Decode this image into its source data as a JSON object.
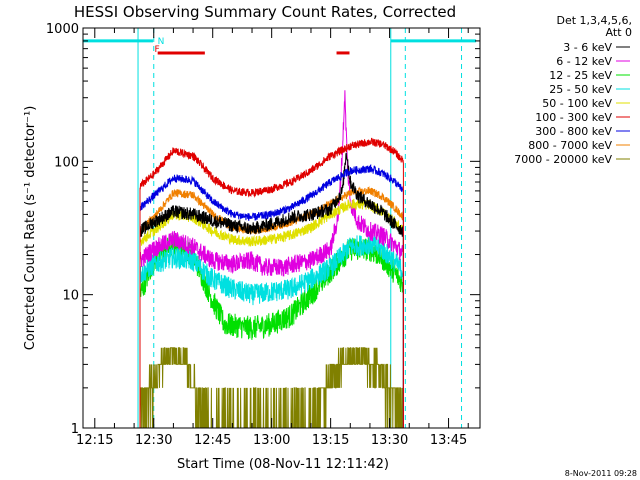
{
  "chart_data": {
    "type": "line",
    "title": "HESSI Observing Summary Count Rates, Corrected",
    "xlabel": "Start Time (08-Nov-11 12:11:42)",
    "ylabel": "Corrected Count Rate (s⁻¹ detector⁻¹)",
    "yscale": "log",
    "ylim": [
      1,
      1000
    ],
    "xlim_minutes": [
      12.0,
      113.0
    ],
    "x_unit": "minutes after 12:00 UT",
    "x_ticks": [
      {
        "label": "12:15",
        "value": 15
      },
      {
        "label": "12:30",
        "value": 30
      },
      {
        "label": "12:45",
        "value": 45
      },
      {
        "label": "13:00",
        "value": 60
      },
      {
        "label": "13:15",
        "value": 75
      },
      {
        "label": "13:30",
        "value": 90
      },
      {
        "label": "13:45",
        "value": 105
      }
    ],
    "y_ticks": [
      {
        "label": "1",
        "value": 1
      },
      {
        "label": "10",
        "value": 10
      },
      {
        "label": "100",
        "value": 100
      },
      {
        "label": "1000",
        "value": 1000
      }
    ],
    "legend_header": [
      "Det 1,3,4,5,6,",
      "Att 0"
    ],
    "legend_position": "right",
    "data_start": 26.5,
    "data_end": 93.5,
    "series": [
      {
        "name": "3 - 6 keV",
        "color": "#000000",
        "noise": 0.05,
        "points": [
          [
            26.5,
            30
          ],
          [
            30,
            35
          ],
          [
            35,
            42
          ],
          [
            40,
            40
          ],
          [
            45,
            36
          ],
          [
            50,
            33
          ],
          [
            55,
            31
          ],
          [
            60,
            34
          ],
          [
            65,
            38
          ],
          [
            70,
            40
          ],
          [
            75,
            44
          ],
          [
            78,
            60
          ],
          [
            79,
            120
          ],
          [
            80,
            70
          ],
          [
            82,
            55
          ],
          [
            85,
            48
          ],
          [
            88,
            42
          ],
          [
            91,
            34
          ],
          [
            93.5,
            30
          ]
        ]
      },
      {
        "name": "6 - 12 keV",
        "color": "#e000e0",
        "noise": 0.07,
        "points": [
          [
            26.5,
            18
          ],
          [
            30,
            22
          ],
          [
            35,
            26
          ],
          [
            40,
            23
          ],
          [
            45,
            18
          ],
          [
            50,
            17
          ],
          [
            55,
            18
          ],
          [
            58,
            16
          ],
          [
            60,
            16
          ],
          [
            63,
            16
          ],
          [
            66,
            17
          ],
          [
            70,
            18
          ],
          [
            75,
            22
          ],
          [
            77,
            40
          ],
          [
            78,
            120
          ],
          [
            78.6,
            320
          ],
          [
            79.3,
            90
          ],
          [
            80,
            50
          ],
          [
            82,
            35
          ],
          [
            85,
            30
          ],
          [
            88,
            28
          ],
          [
            91,
            24
          ],
          [
            93.5,
            20
          ]
        ]
      },
      {
        "name": "12 - 25 keV",
        "color": "#00e000",
        "noise": 0.09,
        "points": [
          [
            26.5,
            10
          ],
          [
            30,
            18
          ],
          [
            35,
            24
          ],
          [
            40,
            20
          ],
          [
            45,
            9
          ],
          [
            48,
            6
          ],
          [
            55,
            5.6
          ],
          [
            60,
            6
          ],
          [
            65,
            7
          ],
          [
            70,
            10
          ],
          [
            75,
            15
          ],
          [
            80,
            22
          ],
          [
            85,
            22
          ],
          [
            88,
            19
          ],
          [
            91,
            15
          ],
          [
            93.5,
            12
          ]
        ]
      },
      {
        "name": "25 - 50 keV",
        "color": "#00e0e0",
        "noise": 0.08,
        "points": [
          [
            26.5,
            14
          ],
          [
            30,
            17
          ],
          [
            35,
            19
          ],
          [
            40,
            18
          ],
          [
            45,
            13
          ],
          [
            50,
            11
          ],
          [
            55,
            10
          ],
          [
            60,
            10.5
          ],
          [
            65,
            11
          ],
          [
            70,
            13
          ],
          [
            75,
            16
          ],
          [
            80,
            23
          ],
          [
            85,
            24
          ],
          [
            88,
            22
          ],
          [
            91,
            18
          ],
          [
            93.5,
            15
          ]
        ]
      },
      {
        "name": "50 - 100 keV",
        "color": "#e0e000",
        "noise": 0.04,
        "points": [
          [
            26.5,
            25
          ],
          [
            30,
            30
          ],
          [
            35,
            40
          ],
          [
            40,
            38
          ],
          [
            45,
            30
          ],
          [
            50,
            26
          ],
          [
            55,
            25
          ],
          [
            60,
            26
          ],
          [
            65,
            28
          ],
          [
            70,
            32
          ],
          [
            75,
            40
          ],
          [
            80,
            48
          ],
          [
            85,
            47
          ],
          [
            88,
            42
          ],
          [
            91,
            36
          ],
          [
            93.5,
            30
          ]
        ]
      },
      {
        "name": "100 - 300 keV",
        "color": "#e00000",
        "noise": 0.03,
        "points": [
          [
            26.5,
            65
          ],
          [
            30,
            80
          ],
          [
            35,
            120
          ],
          [
            40,
            110
          ],
          [
            45,
            75
          ],
          [
            50,
            60
          ],
          [
            55,
            58
          ],
          [
            60,
            62
          ],
          [
            65,
            70
          ],
          [
            70,
            85
          ],
          [
            75,
            110
          ],
          [
            80,
            130
          ],
          [
            85,
            140
          ],
          [
            88,
            135
          ],
          [
            91,
            120
          ],
          [
            93.5,
            100
          ]
        ]
      },
      {
        "name": "300 - 800 keV",
        "color": "#0000e0",
        "noise": 0.03,
        "points": [
          [
            26.5,
            45
          ],
          [
            30,
            55
          ],
          [
            35,
            75
          ],
          [
            40,
            72
          ],
          [
            45,
            50
          ],
          [
            50,
            40
          ],
          [
            55,
            38
          ],
          [
            60,
            40
          ],
          [
            65,
            45
          ],
          [
            70,
            55
          ],
          [
            75,
            70
          ],
          [
            80,
            85
          ],
          [
            85,
            88
          ],
          [
            88,
            82
          ],
          [
            91,
            72
          ],
          [
            93.5,
            60
          ]
        ]
      },
      {
        "name": "800 - 7000 keV",
        "color": "#f08000",
        "noise": 0.03,
        "points": [
          [
            26.5,
            30
          ],
          [
            30,
            38
          ],
          [
            35,
            58
          ],
          [
            40,
            56
          ],
          [
            45,
            40
          ],
          [
            50,
            32
          ],
          [
            55,
            30
          ],
          [
            60,
            32
          ],
          [
            65,
            35
          ],
          [
            70,
            40
          ],
          [
            75,
            48
          ],
          [
            80,
            58
          ],
          [
            85,
            60
          ],
          [
            88,
            55
          ],
          [
            91,
            46
          ],
          [
            93.5,
            38
          ]
        ]
      },
      {
        "name": "7000 - 20000 keV",
        "color": "#808000",
        "noise": 0,
        "points": [
          [
            26.5,
            1.4
          ],
          [
            28,
            1.6
          ],
          [
            30,
            2.2
          ],
          [
            32,
            3.0
          ],
          [
            35,
            3.5
          ],
          [
            38,
            3.2
          ],
          [
            40,
            2.0
          ],
          [
            42,
            1.2
          ],
          [
            44,
            1.0
          ],
          [
            70,
            1.0
          ],
          [
            72,
            1.5
          ],
          [
            75,
            2.5
          ],
          [
            78,
            3.2
          ],
          [
            80,
            3.5
          ],
          [
            83,
            3.4
          ],
          [
            86,
            3.0
          ],
          [
            89,
            2.2
          ],
          [
            92,
            1.5
          ],
          [
            93.5,
            1.2
          ]
        ]
      }
    ],
    "status_bars": [
      {
        "color": "#00e0e0",
        "y": 800,
        "segments": [
          [
            12.0,
            29.8
          ],
          [
            90.3,
            112.0
          ]
        ]
      },
      {
        "color": "#e00000",
        "y": 650,
        "segments": [
          [
            31.0,
            43.0
          ],
          [
            76.5,
            79.8
          ]
        ]
      }
    ],
    "status_labels": [
      {
        "text": "F",
        "x": 30.2,
        "color": "#e00000"
      },
      {
        "text": "N",
        "x": 31.0,
        "color": "#00e0e0"
      }
    ],
    "vertical_lines": [
      {
        "x": 26.0,
        "color": "#00e0e0",
        "dashed": false
      },
      {
        "x": 30.0,
        "color": "#00e0e0",
        "dashed": true
      },
      {
        "x": 90.3,
        "color": "#00e0e0",
        "dashed": false
      },
      {
        "x": 94.0,
        "color": "#00e0e0",
        "dashed": true
      },
      {
        "x": 108.3,
        "color": "#00e0e0",
        "dashed": true
      }
    ]
  },
  "footer": {
    "timestamp": "8-Nov-2011 09:28"
  }
}
